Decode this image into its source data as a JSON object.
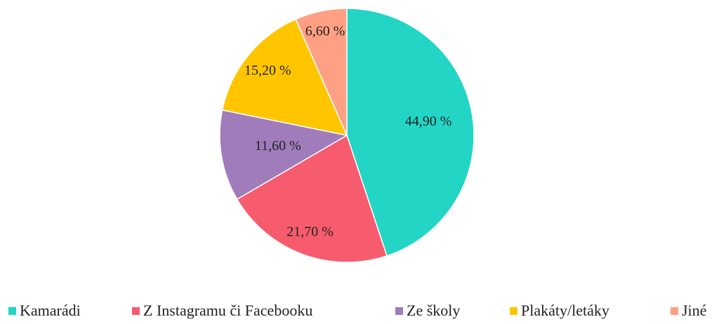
{
  "chart_data": {
    "type": "pie",
    "categories": [
      "Kamarádi",
      "Z Instagramu či Facebooku",
      "Ze školy",
      "Plakáty/letáky",
      "Jiné"
    ],
    "values": [
      44.9,
      21.7,
      11.6,
      15.2,
      6.6
    ],
    "value_labels": [
      "44,90 %",
      "21,70 %",
      "11,60 %",
      "15,20 %",
      "6,60 %"
    ],
    "colors": [
      "#22d5c4",
      "#f65c6e",
      "#a07cba",
      "#ffc600",
      "#ffa084"
    ],
    "legend": "bottom"
  }
}
